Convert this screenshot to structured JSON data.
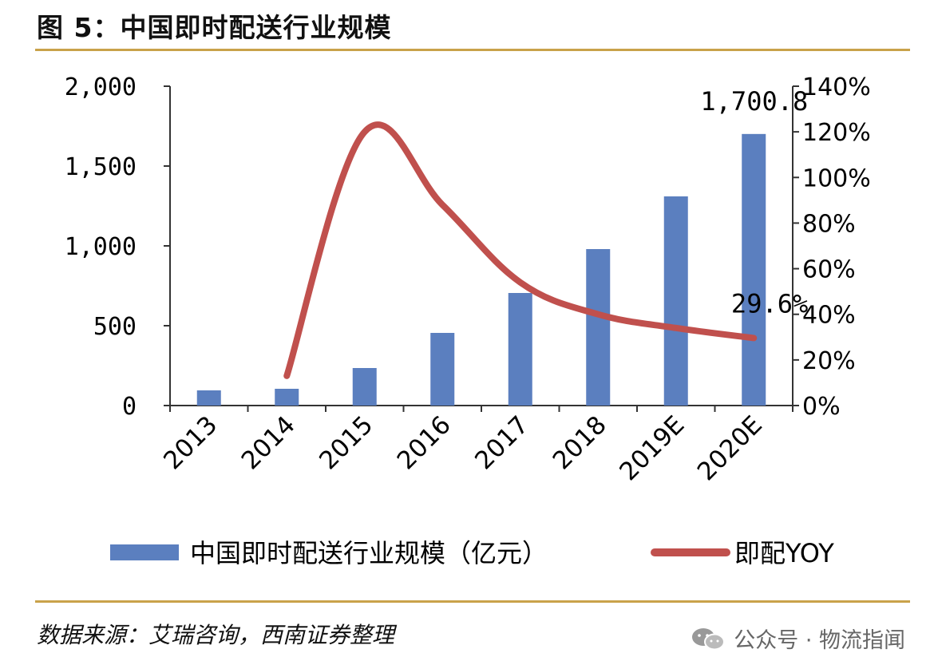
{
  "header": {
    "title": "图 5：中国即时配送行业规模"
  },
  "chart_data": {
    "type": "bar",
    "categories": [
      "2013",
      "2014",
      "2015",
      "2016",
      "2017",
      "2018",
      "2019E",
      "2020E"
    ],
    "series": [
      {
        "name": "中国即时配送行业规模（亿元）",
        "type": "bar",
        "axis": "left",
        "values": [
          95,
          105,
          235,
          455,
          705,
          980,
          1310,
          1700.8
        ],
        "color": "#5b7fbf"
      },
      {
        "name": "即配YOY",
        "type": "line",
        "axis": "right",
        "values": [
          null,
          13,
          120,
          88,
          54,
          40,
          34,
          29.6
        ],
        "color": "#c0504d"
      }
    ],
    "left_axis": {
      "min": 0,
      "max": 2000,
      "ticks": [
        "0",
        "500",
        "1,000",
        "1,500",
        "2,000"
      ]
    },
    "right_axis": {
      "min": 0,
      "max": 140,
      "ticks": [
        "0%",
        "20%",
        "40%",
        "60%",
        "80%",
        "100%",
        "120%",
        "140%"
      ]
    },
    "annotations": [
      {
        "text": "1,700.8",
        "series": 0,
        "index": 7
      },
      {
        "text": "29.6%",
        "series": 1,
        "index": 7
      }
    ],
    "legend": {
      "position": "bottom"
    }
  },
  "footer": {
    "source": "数据来源：艾瑞咨询，西南证券整理",
    "watermark": "公众号 · 物流指闻"
  }
}
